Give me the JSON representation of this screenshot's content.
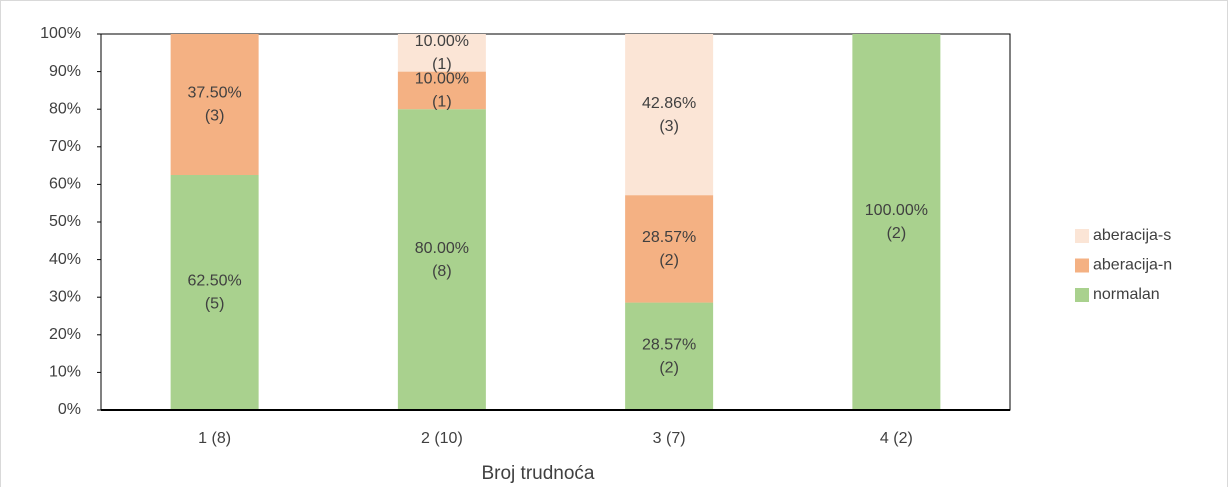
{
  "chart_data": {
    "type": "stacked_bar",
    "x_label": "Broj trudnoća",
    "categories": [
      "1 (8)",
      "2 (10)",
      "3 (7)",
      "4 (2)"
    ],
    "series": [
      {
        "name": "normalan",
        "color": "#a9d18e",
        "values": [
          62.5,
          80,
          28.57,
          100
        ],
        "value_labels": [
          "62.50%",
          "80.00%",
          "28.57%",
          "100.00%"
        ],
        "count_labels": [
          "(5)",
          "(8)",
          "(2)",
          "(2)"
        ]
      },
      {
        "name": "aberacija-n",
        "color": "#f4b183",
        "values": [
          37.5,
          10,
          28.57,
          null
        ],
        "value_labels": [
          "37.50%",
          "10.00%",
          "28.57%",
          null
        ],
        "count_labels": [
          "(3)",
          "(1)",
          "(2)",
          null
        ]
      },
      {
        "name": "aberacija-s",
        "color": "#fbe5d6",
        "values": [
          null,
          10,
          42.86,
          null
        ],
        "value_labels": [
          null,
          "10.00%",
          "42.86%",
          null
        ],
        "count_labels": [
          null,
          "(1)",
          "(3)",
          null
        ]
      }
    ],
    "ylim": [
      0,
      100
    ],
    "yticks": [
      {
        "value": 0,
        "label": "0%"
      },
      {
        "value": 10,
        "label": "10%"
      },
      {
        "value": 20,
        "label": "20%"
      },
      {
        "value": 30,
        "label": "30%"
      },
      {
        "value": 40,
        "label": "40%"
      },
      {
        "value": 50,
        "label": "50%"
      },
      {
        "value": 60,
        "label": "60%"
      },
      {
        "value": 70,
        "label": "70%"
      },
      {
        "value": 80,
        "label": "80%"
      },
      {
        "value": 90,
        "label": "90%"
      },
      {
        "value": 100,
        "label": "100%"
      }
    ],
    "legend": "right"
  }
}
